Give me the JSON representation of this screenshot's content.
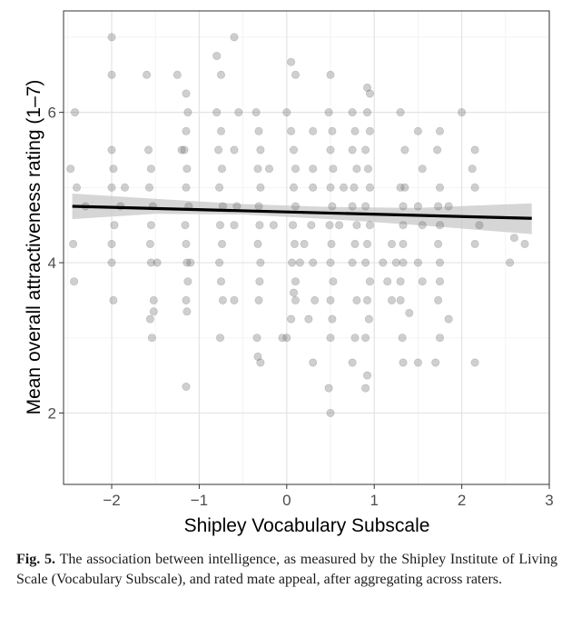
{
  "chart_data": {
    "type": "scatter",
    "title": "",
    "xlabel": "Shipley Vocabulary Subscale",
    "ylabel": "Mean overall attractiveness rating (1–7)",
    "xlim": [
      -2.55,
      3.0
    ],
    "ylim": [
      1.05,
      7.35
    ],
    "x_ticks": [
      -2,
      -1,
      0,
      1,
      2,
      3
    ],
    "x_tick_labels": [
      "−2",
      "−1",
      "0",
      "1",
      "2",
      "3"
    ],
    "y_ticks": [
      2,
      4,
      6
    ],
    "y_tick_labels": [
      "2",
      "4",
      "6"
    ],
    "grid": true,
    "regression_line": {
      "x": [
        -2.45,
        2.8
      ],
      "y": [
        4.75,
        4.59
      ]
    },
    "confidence_band": {
      "x": [
        -2.45,
        -1.5,
        -0.5,
        0.5,
        1.5,
        2.8
      ],
      "lower": [
        4.58,
        4.65,
        4.64,
        4.58,
        4.5,
        4.38
      ],
      "upper": [
        4.92,
        4.85,
        4.78,
        4.74,
        4.73,
        4.79
      ]
    },
    "points": [
      [
        -2.42,
        6.0
      ],
      [
        -2.47,
        5.25
      ],
      [
        -2.44,
        4.25
      ],
      [
        -2.43,
        3.75
      ],
      [
        -2.4,
        5.0
      ],
      [
        -2.3,
        4.75
      ],
      [
        -2.0,
        7.0
      ],
      [
        -2.0,
        6.5
      ],
      [
        -2.0,
        5.5
      ],
      [
        -1.98,
        5.25
      ],
      [
        -2.0,
        5.0
      ],
      [
        -1.97,
        4.5
      ],
      [
        -2.0,
        4.25
      ],
      [
        -2.0,
        4.0
      ],
      [
        -1.98,
        3.5
      ],
      [
        -1.9,
        4.75
      ],
      [
        -1.85,
        5.0
      ],
      [
        -1.6,
        6.5
      ],
      [
        -1.58,
        5.5
      ],
      [
        -1.55,
        5.25
      ],
      [
        -1.57,
        5.0
      ],
      [
        -1.53,
        4.75
      ],
      [
        -1.55,
        4.5
      ],
      [
        -1.56,
        4.25
      ],
      [
        -1.55,
        4.0
      ],
      [
        -1.52,
        3.5
      ],
      [
        -1.56,
        3.25
      ],
      [
        -1.54,
        3.0
      ],
      [
        -1.52,
        3.35
      ],
      [
        -1.48,
        4.0
      ],
      [
        -1.25,
        6.5
      ],
      [
        -1.15,
        6.25
      ],
      [
        -1.13,
        6.0
      ],
      [
        -1.15,
        5.75
      ],
      [
        -1.17,
        5.5
      ],
      [
        -1.14,
        5.25
      ],
      [
        -1.15,
        5.0
      ],
      [
        -1.12,
        4.75
      ],
      [
        -1.16,
        4.5
      ],
      [
        -1.15,
        4.25
      ],
      [
        -1.14,
        4.0
      ],
      [
        -1.13,
        3.75
      ],
      [
        -1.15,
        3.5
      ],
      [
        -1.14,
        3.35
      ],
      [
        -1.15,
        2.35
      ],
      [
        -1.2,
        5.5
      ],
      [
        -1.1,
        4.0
      ],
      [
        -0.8,
        6.75
      ],
      [
        -0.75,
        6.5
      ],
      [
        -0.8,
        6.0
      ],
      [
        -0.75,
        5.75
      ],
      [
        -0.78,
        5.5
      ],
      [
        -0.74,
        5.25
      ],
      [
        -0.77,
        5.0
      ],
      [
        -0.73,
        4.75
      ],
      [
        -0.76,
        4.5
      ],
      [
        -0.74,
        4.25
      ],
      [
        -0.77,
        4.0
      ],
      [
        -0.75,
        3.75
      ],
      [
        -0.73,
        3.5
      ],
      [
        -0.76,
        3.0
      ],
      [
        -0.6,
        7.0
      ],
      [
        -0.6,
        5.5
      ],
      [
        -0.6,
        4.5
      ],
      [
        -0.6,
        3.5
      ],
      [
        -0.55,
        6.0
      ],
      [
        -0.57,
        4.75
      ],
      [
        -0.35,
        6.0
      ],
      [
        -0.32,
        5.75
      ],
      [
        -0.3,
        5.5
      ],
      [
        -0.33,
        5.25
      ],
      [
        -0.3,
        5.0
      ],
      [
        -0.32,
        4.75
      ],
      [
        -0.31,
        4.5
      ],
      [
        -0.33,
        4.25
      ],
      [
        -0.3,
        4.0
      ],
      [
        -0.31,
        3.75
      ],
      [
        -0.32,
        3.5
      ],
      [
        -0.34,
        3.0
      ],
      [
        -0.33,
        2.75
      ],
      [
        -0.3,
        2.67
      ],
      [
        -0.2,
        5.25
      ],
      [
        -0.15,
        4.5
      ],
      [
        0.0,
        6.0
      ],
      [
        0.05,
        6.67
      ],
      [
        0.1,
        6.5
      ],
      [
        0.05,
        5.75
      ],
      [
        0.08,
        5.5
      ],
      [
        0.1,
        5.25
      ],
      [
        0.08,
        5.0
      ],
      [
        0.1,
        4.75
      ],
      [
        0.07,
        4.5
      ],
      [
        0.09,
        4.25
      ],
      [
        0.06,
        4.0
      ],
      [
        0.1,
        3.75
      ],
      [
        0.08,
        3.6
      ],
      [
        0.1,
        3.5
      ],
      [
        0.05,
        3.25
      ],
      [
        0.0,
        3.0
      ],
      [
        0.15,
        4.0
      ],
      [
        -0.05,
        3.0
      ],
      [
        0.3,
        5.75
      ],
      [
        0.3,
        5.25
      ],
      [
        0.3,
        5.0
      ],
      [
        0.28,
        4.5
      ],
      [
        0.3,
        4.0
      ],
      [
        0.32,
        3.5
      ],
      [
        0.3,
        2.67
      ],
      [
        0.2,
        4.25
      ],
      [
        0.25,
        3.25
      ],
      [
        0.5,
        6.5
      ],
      [
        0.48,
        6.0
      ],
      [
        0.52,
        5.75
      ],
      [
        0.5,
        5.5
      ],
      [
        0.53,
        5.25
      ],
      [
        0.5,
        5.0
      ],
      [
        0.52,
        4.75
      ],
      [
        0.49,
        4.5
      ],
      [
        0.51,
        4.25
      ],
      [
        0.5,
        4.0
      ],
      [
        0.53,
        3.75
      ],
      [
        0.5,
        3.5
      ],
      [
        0.52,
        3.25
      ],
      [
        0.5,
        3.0
      ],
      [
        0.48,
        2.33
      ],
      [
        0.5,
        2.0
      ],
      [
        0.6,
        4.5
      ],
      [
        0.65,
        5.0
      ],
      [
        0.75,
        6.0
      ],
      [
        0.78,
        5.75
      ],
      [
        0.75,
        5.5
      ],
      [
        0.8,
        5.25
      ],
      [
        0.77,
        5.0
      ],
      [
        0.75,
        4.75
      ],
      [
        0.8,
        4.5
      ],
      [
        0.78,
        4.25
      ],
      [
        0.75,
        4.0
      ],
      [
        0.8,
        3.5
      ],
      [
        0.78,
        3.0
      ],
      [
        0.75,
        2.67
      ],
      [
        0.92,
        6.33
      ],
      [
        0.95,
        6.25
      ],
      [
        0.92,
        6.0
      ],
      [
        0.95,
        5.75
      ],
      [
        0.9,
        5.5
      ],
      [
        0.93,
        5.25
      ],
      [
        0.95,
        5.0
      ],
      [
        0.9,
        4.75
      ],
      [
        0.95,
        4.5
      ],
      [
        0.92,
        4.25
      ],
      [
        0.9,
        4.0
      ],
      [
        0.95,
        3.75
      ],
      [
        0.92,
        3.5
      ],
      [
        0.94,
        3.25
      ],
      [
        0.9,
        3.0
      ],
      [
        0.92,
        2.5
      ],
      [
        0.9,
        2.33
      ],
      [
        1.1,
        4.0
      ],
      [
        1.15,
        3.75
      ],
      [
        1.2,
        4.25
      ],
      [
        1.2,
        3.5
      ],
      [
        1.25,
        4.0
      ],
      [
        1.3,
        5.0
      ],
      [
        1.3,
        6.0
      ],
      [
        1.35,
        5.5
      ],
      [
        1.35,
        5.0
      ],
      [
        1.33,
        4.75
      ],
      [
        1.33,
        4.5
      ],
      [
        1.33,
        4.25
      ],
      [
        1.33,
        4.0
      ],
      [
        1.3,
        3.75
      ],
      [
        1.3,
        3.5
      ],
      [
        1.32,
        3.0
      ],
      [
        1.33,
        2.67
      ],
      [
        1.4,
        3.33
      ],
      [
        1.5,
        5.75
      ],
      [
        1.55,
        5.25
      ],
      [
        1.5,
        4.75
      ],
      [
        1.55,
        4.5
      ],
      [
        1.5,
        4.0
      ],
      [
        1.55,
        3.75
      ],
      [
        1.5,
        2.67
      ],
      [
        1.75,
        5.75
      ],
      [
        1.72,
        5.5
      ],
      [
        1.75,
        5.0
      ],
      [
        1.73,
        4.75
      ],
      [
        1.75,
        4.5
      ],
      [
        1.73,
        4.25
      ],
      [
        1.75,
        4.0
      ],
      [
        1.75,
        3.75
      ],
      [
        1.73,
        3.5
      ],
      [
        1.75,
        3.0
      ],
      [
        1.7,
        2.67
      ],
      [
        1.85,
        4.75
      ],
      [
        1.85,
        3.25
      ],
      [
        2.0,
        6.0
      ],
      [
        2.15,
        5.5
      ],
      [
        2.12,
        5.25
      ],
      [
        2.15,
        5.0
      ],
      [
        2.15,
        4.25
      ],
      [
        2.15,
        2.67
      ],
      [
        2.2,
        4.5
      ],
      [
        2.6,
        4.33
      ],
      [
        2.72,
        4.25
      ],
      [
        2.55,
        4.0
      ]
    ]
  },
  "caption": {
    "label": "Fig. 5.",
    "text": " The association between intelligence, as measured by the Shipley Institute of Living Scale (Vocabulary Subscale), and rated mate appeal, after aggregating across raters."
  }
}
